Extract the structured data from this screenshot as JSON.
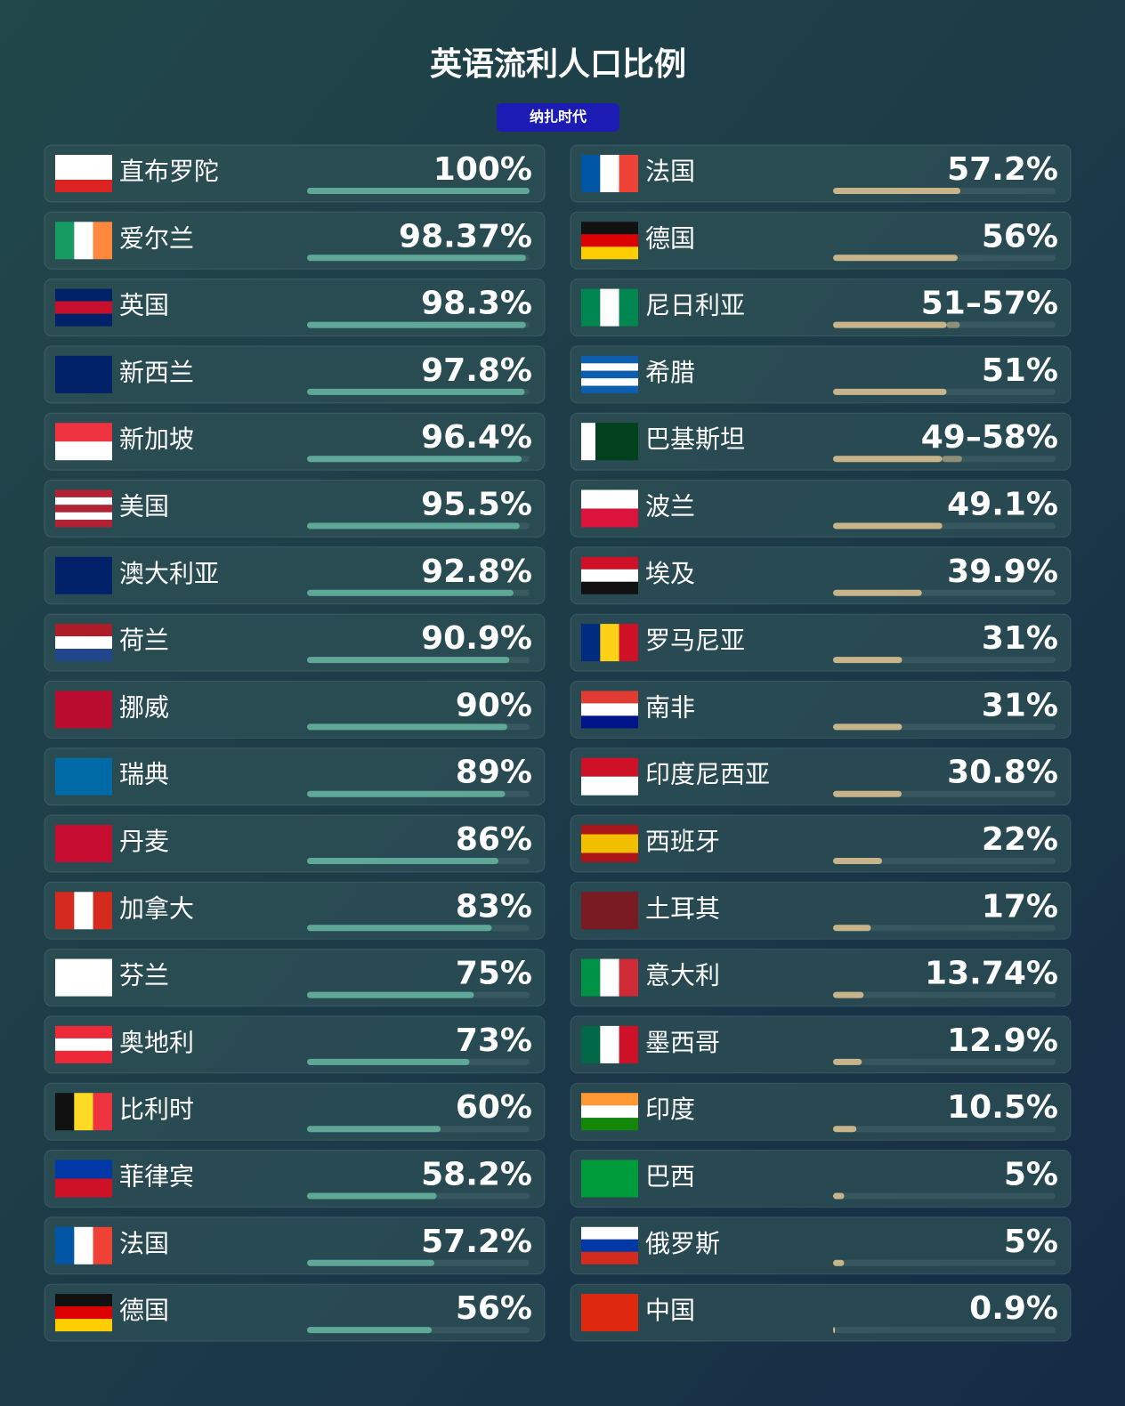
{
  "title": "英语流利人口比例",
  "subtitle": "纳扎时代",
  "chart_data": [
    {
      "type": "bar",
      "orientation": "horizontal",
      "color": "#5fa898",
      "xlim": [
        0,
        100
      ],
      "categories": [
        "直布罗陀",
        "爱尔兰",
        "英国",
        "新西兰",
        "新加坡",
        "美国",
        "澳大利亚",
        "荷兰",
        "挪威",
        "瑞典",
        "丹麦",
        "加拿大",
        "芬兰",
        "奥地利",
        "比利时",
        "菲律宾",
        "法国",
        "德国"
      ],
      "values": [
        100,
        98.37,
        98.3,
        97.8,
        96.4,
        95.5,
        92.8,
        90.9,
        90,
        89,
        86,
        83,
        75,
        73,
        60,
        58.2,
        57.2,
        56
      ],
      "value_labels": [
        "100%",
        "98.37%",
        "98.3%",
        "97.8%",
        "96.4%",
        "95.5%",
        "92.8%",
        "90.9%",
        "90%",
        "89%",
        "86%",
        "83%",
        "75%",
        "73%",
        "60%",
        "58.2%",
        "57.2%",
        "56%"
      ]
    },
    {
      "type": "bar",
      "orientation": "horizontal",
      "color": "#c8b48a",
      "xlim": [
        0,
        100
      ],
      "categories": [
        "法国",
        "德国",
        "尼日利亚",
        "希腊",
        "巴基斯坦",
        "波兰",
        "埃及",
        "罗马尼亚",
        "南非",
        "印度尼西亚",
        "西班牙",
        "土耳其",
        "意大利",
        "墨西哥",
        "印度",
        "巴西",
        "俄罗斯",
        "中国"
      ],
      "values": [
        57.2,
        56,
        [
          51,
          57
        ],
        51,
        [
          49,
          58
        ],
        49.1,
        39.9,
        31,
        31,
        30.8,
        22,
        17,
        13.74,
        12.9,
        10.5,
        5,
        5,
        0.9
      ],
      "value_labels": [
        "57.2%",
        "56%",
        "51–57%",
        "51%",
        "49–58%",
        "49.1%",
        "39.9%",
        "31%",
        "31%",
        "30.8%",
        "22%",
        "17%",
        "13.74%",
        "12.9%",
        "10.5%",
        "5%",
        "5%",
        "0.9%"
      ]
    }
  ]
}
